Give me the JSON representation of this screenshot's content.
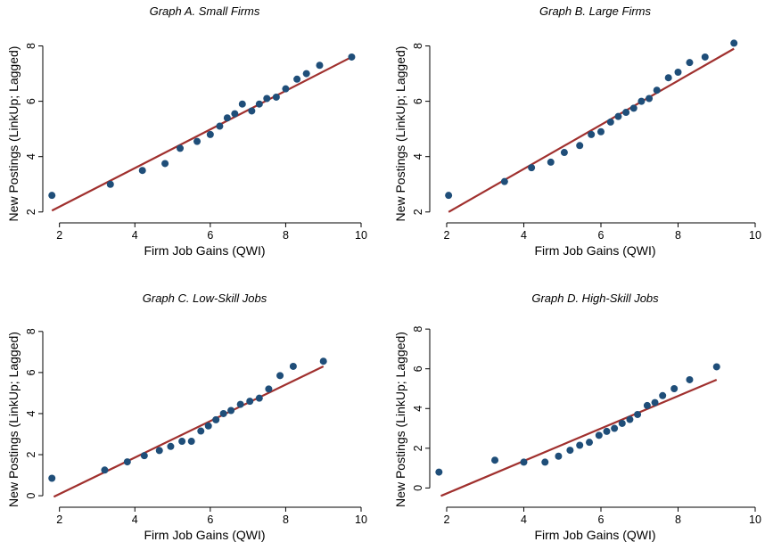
{
  "chart_data": [
    {
      "type": "scatter",
      "title": "Graph A. Small Firms",
      "xlabel": "Firm Job Gains (QWI)",
      "ylabel": "New Postings (LinkUp; Lagged)",
      "xlim": [
        1.7,
        10
      ],
      "ylim": [
        1.8,
        8.5
      ],
      "xticks": [
        2,
        4,
        6,
        8,
        10
      ],
      "yticks": [
        2,
        4,
        6,
        8
      ],
      "grid": false,
      "points": [
        [
          1.8,
          2.6
        ],
        [
          3.35,
          3.0
        ],
        [
          4.2,
          3.5
        ],
        [
          4.8,
          3.75
        ],
        [
          5.2,
          4.3
        ],
        [
          5.65,
          4.55
        ],
        [
          6.0,
          4.8
        ],
        [
          6.25,
          5.1
        ],
        [
          6.45,
          5.4
        ],
        [
          6.65,
          5.55
        ],
        [
          6.85,
          5.9
        ],
        [
          7.1,
          5.65
        ],
        [
          7.3,
          5.9
        ],
        [
          7.5,
          6.1
        ],
        [
          7.75,
          6.15
        ],
        [
          8.0,
          6.45
        ],
        [
          8.3,
          6.8
        ],
        [
          8.55,
          7.0
        ],
        [
          8.9,
          7.3
        ],
        [
          9.75,
          7.6
        ]
      ],
      "fit": {
        "x": [
          1.8,
          9.75
        ],
        "y": [
          2.05,
          7.6
        ]
      }
    },
    {
      "type": "scatter",
      "title": "Graph B. Large Firms",
      "xlabel": "Firm Job Gains (QWI)",
      "ylabel": "New Postings (LinkUp; Lagged)",
      "xlim": [
        1.7,
        10
      ],
      "ylim": [
        1.8,
        8.5
      ],
      "xticks": [
        2,
        4,
        6,
        8,
        10
      ],
      "yticks": [
        2,
        4,
        6,
        8
      ],
      "grid": false,
      "points": [
        [
          2.05,
          2.6
        ],
        [
          3.5,
          3.1
        ],
        [
          4.2,
          3.6
        ],
        [
          4.7,
          3.8
        ],
        [
          5.05,
          4.15
        ],
        [
          5.45,
          4.4
        ],
        [
          5.75,
          4.8
        ],
        [
          6.0,
          4.9
        ],
        [
          6.25,
          5.25
        ],
        [
          6.45,
          5.45
        ],
        [
          6.65,
          5.6
        ],
        [
          6.85,
          5.75
        ],
        [
          7.05,
          6.0
        ],
        [
          7.25,
          6.1
        ],
        [
          7.45,
          6.4
        ],
        [
          7.75,
          6.85
        ],
        [
          8.0,
          7.05
        ],
        [
          8.3,
          7.4
        ],
        [
          8.7,
          7.6
        ],
        [
          9.45,
          8.1
        ]
      ],
      "fit": {
        "x": [
          2.05,
          9.45
        ],
        "y": [
          2.0,
          7.9
        ]
      }
    },
    {
      "type": "scatter",
      "title": "Graph C. Low-Skill Jobs",
      "xlabel": "Firm Job Gains (QWI)",
      "ylabel": "New Postings (LinkUp; Lagged)",
      "xlim": [
        1.7,
        10
      ],
      "ylim": [
        -0.3,
        8.6
      ],
      "xticks": [
        2,
        4,
        6,
        8,
        10
      ],
      "yticks": [
        0,
        2,
        4,
        6,
        8
      ],
      "grid": false,
      "points": [
        [
          1.8,
          0.85
        ],
        [
          3.2,
          1.25
        ],
        [
          3.8,
          1.65
        ],
        [
          4.25,
          1.95
        ],
        [
          4.65,
          2.2
        ],
        [
          4.95,
          2.4
        ],
        [
          5.25,
          2.65
        ],
        [
          5.5,
          2.65
        ],
        [
          5.75,
          3.15
        ],
        [
          5.95,
          3.4
        ],
        [
          6.15,
          3.7
        ],
        [
          6.35,
          4.0
        ],
        [
          6.55,
          4.15
        ],
        [
          6.8,
          4.45
        ],
        [
          7.05,
          4.6
        ],
        [
          7.3,
          4.75
        ],
        [
          7.55,
          5.2
        ],
        [
          7.85,
          5.85
        ],
        [
          8.2,
          6.3
        ],
        [
          9.0,
          6.55
        ]
      ],
      "fit": {
        "x": [
          1.85,
          9.0
        ],
        "y": [
          -0.05,
          6.3
        ]
      }
    },
    {
      "type": "scatter",
      "title": "Graph D. High-Skill Jobs",
      "xlabel": "Firm Job Gains (QWI)",
      "ylabel": "New Postings (LinkUp; Lagged)",
      "xlim": [
        1.7,
        10
      ],
      "ylim": [
        -0.7,
        8.5
      ],
      "xticks": [
        2,
        4,
        6,
        8,
        10
      ],
      "yticks": [
        0,
        2,
        4,
        6,
        8
      ],
      "grid": false,
      "points": [
        [
          1.8,
          0.8
        ],
        [
          3.25,
          1.4
        ],
        [
          4.0,
          1.3
        ],
        [
          4.55,
          1.3
        ],
        [
          4.9,
          1.6
        ],
        [
          5.2,
          1.9
        ],
        [
          5.45,
          2.15
        ],
        [
          5.7,
          2.3
        ],
        [
          5.95,
          2.65
        ],
        [
          6.15,
          2.85
        ],
        [
          6.35,
          3.0
        ],
        [
          6.55,
          3.25
        ],
        [
          6.75,
          3.45
        ],
        [
          6.95,
          3.7
        ],
        [
          7.2,
          4.15
        ],
        [
          7.4,
          4.3
        ],
        [
          7.6,
          4.65
        ],
        [
          7.9,
          5.0
        ],
        [
          8.3,
          5.45
        ],
        [
          9.0,
          6.1
        ]
      ],
      "fit": {
        "x": [
          1.85,
          9.0
        ],
        "y": [
          -0.4,
          5.45
        ]
      }
    }
  ]
}
